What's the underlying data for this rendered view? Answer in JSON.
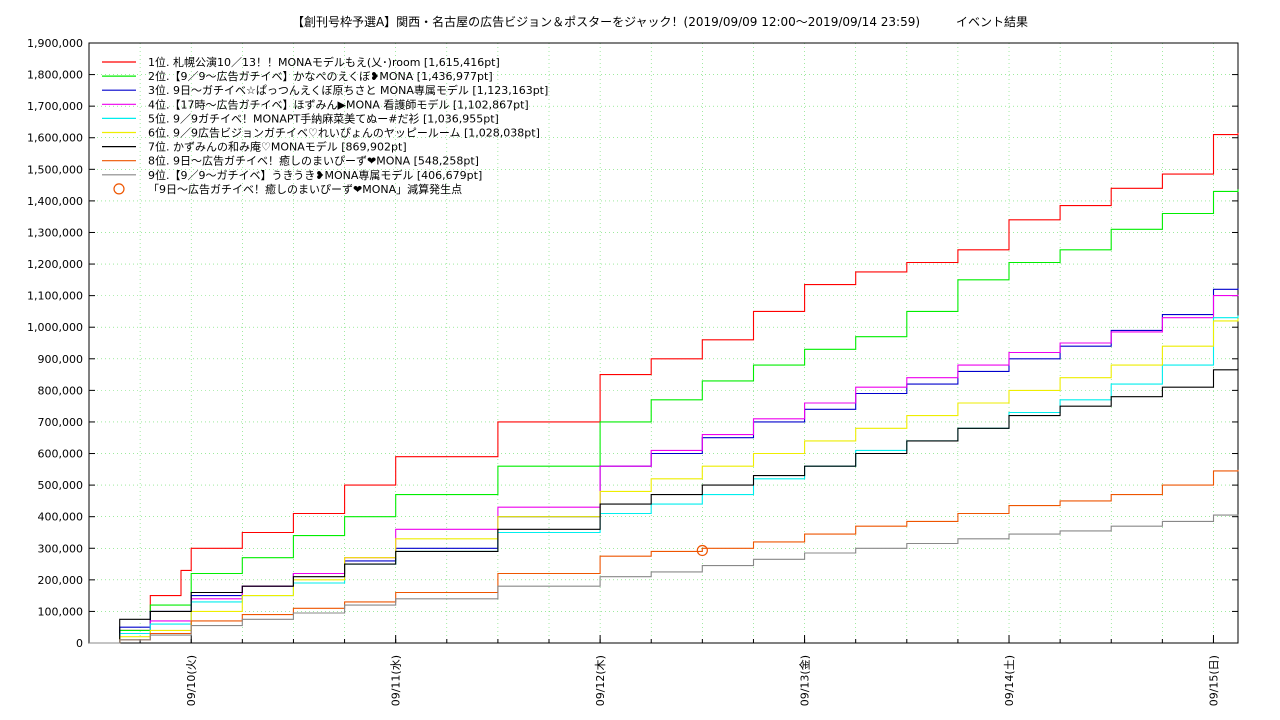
{
  "chart_data": {
    "type": "line",
    "title": "【創刊号枠予選A】関西・名古屋の広告ビジョン＆ポスターをジャック！(2019/09/09 12:00〜2019/09/14 23:59)　　　イベント結果",
    "xlabel": "",
    "ylabel": "",
    "ylim": [
      0,
      1900000
    ],
    "xlim": [
      0,
      5.62
    ],
    "grid": true,
    "legend_position": "top-left",
    "x_ticks": [
      {
        "x": 0.5,
        "label": "09/10(火)"
      },
      {
        "x": 1.5,
        "label": "09/11(水)"
      },
      {
        "x": 2.5,
        "label": "09/12(木)"
      },
      {
        "x": 3.5,
        "label": "09/13(金)"
      },
      {
        "x": 4.5,
        "label": "09/14(土)"
      },
      {
        "x": 5.5,
        "label": "09/15(日)"
      }
    ],
    "y_ticks": [
      {
        "v": 0,
        "label": "0"
      },
      {
        "v": 100000,
        "label": "100,000"
      },
      {
        "v": 200000,
        "label": "200,000"
      },
      {
        "v": 300000,
        "label": "300,000"
      },
      {
        "v": 400000,
        "label": "400,000"
      },
      {
        "v": 500000,
        "label": "500,000"
      },
      {
        "v": 600000,
        "label": "600,000"
      },
      {
        "v": 700000,
        "label": "700,000"
      },
      {
        "v": 800000,
        "label": "800,000"
      },
      {
        "v": 900000,
        "label": "900,000"
      },
      {
        "v": 1000000,
        "label": "1,000,000"
      },
      {
        "v": 1100000,
        "label": "1,100,000"
      },
      {
        "v": 1200000,
        "label": "1,200,000"
      },
      {
        "v": 1300000,
        "label": "1,300,000"
      },
      {
        "v": 1400000,
        "label": "1,400,000"
      },
      {
        "v": 1500000,
        "label": "1,500,000"
      },
      {
        "v": 1600000,
        "label": "1,600,000"
      },
      {
        "v": 1700000,
        "label": "1,700,000"
      },
      {
        "v": 1800000,
        "label": "1,800,000"
      },
      {
        "v": 1900000,
        "label": "1,900,000"
      }
    ],
    "series": [
      {
        "name": "1位. 札幌公演10／13！！MONAモデルもえ(乂･)room [1,615,416pt]",
        "color": "#ff0000",
        "x": [
          0,
          0.15,
          0.3,
          0.45,
          0.5,
          0.75,
          1.0,
          1.25,
          1.5,
          2.0,
          2.5,
          2.75,
          3.0,
          3.25,
          3.5,
          3.75,
          4.0,
          4.25,
          4.5,
          4.75,
          5.0,
          5.25,
          5.5,
          5.62
        ],
        "values": [
          0,
          40000,
          150000,
          230000,
          300000,
          350000,
          410000,
          500000,
          590000,
          700000,
          850000,
          900000,
          960000,
          1050000,
          1135000,
          1175000,
          1205000,
          1245000,
          1340000,
          1385000,
          1440000,
          1485000,
          1610000,
          1615416
        ]
      },
      {
        "name": "2位.【9／9〜広告ガチイベ】かなぺのえくぼ❥MONA [1,436,977pt]",
        "color": "#00ee00",
        "x": [
          0,
          0.15,
          0.3,
          0.5,
          0.75,
          1.0,
          1.25,
          1.5,
          2.0,
          2.5,
          2.75,
          3.0,
          3.25,
          3.5,
          3.75,
          4.0,
          4.25,
          4.5,
          4.75,
          5.0,
          5.25,
          5.5,
          5.62
        ],
        "values": [
          0,
          40000,
          120000,
          220000,
          270000,
          340000,
          400000,
          470000,
          560000,
          700000,
          770000,
          830000,
          880000,
          930000,
          970000,
          1050000,
          1150000,
          1205000,
          1245000,
          1310000,
          1360000,
          1430000,
          1436977
        ]
      },
      {
        "name": "3位. 9日〜ガチイベ☆ぱっつんえくぼ原ちさと MONA専属モデル [1,123,163pt]",
        "color": "#0000cc",
        "x": [
          0,
          0.15,
          0.3,
          0.5,
          0.75,
          1.0,
          1.25,
          1.5,
          2.0,
          2.5,
          2.75,
          3.0,
          3.25,
          3.5,
          3.75,
          4.0,
          4.25,
          4.5,
          4.75,
          5.0,
          5.25,
          5.5,
          5.62
        ],
        "values": [
          0,
          50000,
          100000,
          150000,
          180000,
          220000,
          260000,
          300000,
          400000,
          560000,
          600000,
          650000,
          700000,
          740000,
          790000,
          820000,
          860000,
          900000,
          940000,
          990000,
          1040000,
          1120000,
          1123163
        ]
      },
      {
        "name": "4位.【17時〜広告ガチイベ】ほずみん▶MONA 看護師モデル [1,102,867pt]",
        "color": "#ee00ee",
        "x": [
          0,
          0.15,
          0.3,
          0.5,
          0.75,
          1.0,
          1.25,
          1.5,
          2.0,
          2.5,
          2.75,
          3.0,
          3.25,
          3.5,
          3.75,
          4.0,
          4.25,
          4.5,
          4.75,
          5.0,
          5.25,
          5.5,
          5.62
        ],
        "values": [
          0,
          30000,
          70000,
          140000,
          180000,
          220000,
          270000,
          360000,
          430000,
          560000,
          610000,
          660000,
          710000,
          760000,
          810000,
          840000,
          880000,
          920000,
          950000,
          985000,
          1030000,
          1100000,
          1102867
        ]
      },
      {
        "name": "5位. 9／9ガチイベ！MONAPT手納麻菜美てぬー#だ衫 [1,036,955pt]",
        "color": "#00eeee",
        "x": [
          0,
          0.15,
          0.3,
          0.5,
          0.75,
          1.0,
          1.25,
          1.5,
          2.0,
          2.5,
          2.75,
          3.0,
          3.25,
          3.5,
          3.75,
          4.0,
          4.25,
          4.5,
          4.75,
          5.0,
          5.25,
          5.5,
          5.62
        ],
        "values": [
          0,
          30000,
          60000,
          130000,
          150000,
          190000,
          250000,
          290000,
          350000,
          410000,
          440000,
          470000,
          520000,
          560000,
          610000,
          640000,
          680000,
          730000,
          770000,
          820000,
          880000,
          1030000,
          1036955
        ]
      },
      {
        "name": "6位. 9／9広告ビジョンガチイベ♡れいぴょんのヤッピールーム [1,028,038pt]",
        "color": "#eeee00",
        "x": [
          0,
          0.15,
          0.3,
          0.5,
          0.75,
          1.0,
          1.25,
          1.5,
          2.0,
          2.5,
          2.75,
          3.0,
          3.25,
          3.5,
          3.75,
          4.0,
          4.25,
          4.5,
          4.75,
          5.0,
          5.25,
          5.5,
          5.62
        ],
        "values": [
          0,
          20000,
          40000,
          100000,
          150000,
          200000,
          270000,
          330000,
          400000,
          480000,
          520000,
          560000,
          600000,
          640000,
          680000,
          720000,
          760000,
          800000,
          840000,
          880000,
          940000,
          1020000,
          1028038
        ]
      },
      {
        "name": "7位. かずみんの和み庵♡MONAモデル [869,902pt]",
        "color": "#000000",
        "x": [
          0,
          0.15,
          0.3,
          0.5,
          0.75,
          1.0,
          1.25,
          1.5,
          2.0,
          2.5,
          2.75,
          3.0,
          3.25,
          3.5,
          3.75,
          4.0,
          4.25,
          4.5,
          4.75,
          5.0,
          5.25,
          5.5,
          5.62
        ],
        "values": [
          0,
          75000,
          100000,
          160000,
          180000,
          210000,
          250000,
          290000,
          360000,
          440000,
          470000,
          500000,
          530000,
          560000,
          600000,
          640000,
          680000,
          720000,
          750000,
          780000,
          810000,
          865000,
          869902
        ]
      },
      {
        "name": "8位. 9日〜広告ガチイベ！癒しのまいぴーず❤MONA [548,258pt]",
        "color": "#ee5500",
        "x": [
          0,
          0.15,
          0.3,
          0.5,
          0.75,
          1.0,
          1.25,
          1.5,
          2.0,
          2.5,
          2.75,
          3.0,
          3.25,
          3.5,
          3.75,
          4.0,
          4.25,
          4.5,
          4.75,
          5.0,
          5.25,
          5.5,
          5.62
        ],
        "values": [
          0,
          10000,
          30000,
          70000,
          90000,
          110000,
          130000,
          160000,
          220000,
          275000,
          290000,
          300000,
          320000,
          345000,
          370000,
          385000,
          410000,
          435000,
          450000,
          470000,
          500000,
          545000,
          548258
        ]
      },
      {
        "name": "9位.【9／9〜ガチイベ】うきうき❥MONA専属モデル [406,679pt]",
        "color": "#888888",
        "x": [
          0,
          0.15,
          0.3,
          0.5,
          0.75,
          1.0,
          1.25,
          1.5,
          2.0,
          2.5,
          2.75,
          3.0,
          3.25,
          3.5,
          3.75,
          4.0,
          4.25,
          4.5,
          4.75,
          5.0,
          5.25,
          5.5,
          5.62
        ],
        "values": [
          0,
          10000,
          25000,
          55000,
          75000,
          95000,
          120000,
          140000,
          180000,
          210000,
          225000,
          245000,
          265000,
          285000,
          300000,
          315000,
          330000,
          345000,
          355000,
          370000,
          385000,
          405000,
          406679
        ]
      }
    ],
    "annotation": {
      "name": "「9日〜広告ガチイベ！癒しのまいぴーず❤MONA」減算発生点",
      "color": "#ee5500",
      "x": 3.0,
      "value": 293000
    }
  }
}
